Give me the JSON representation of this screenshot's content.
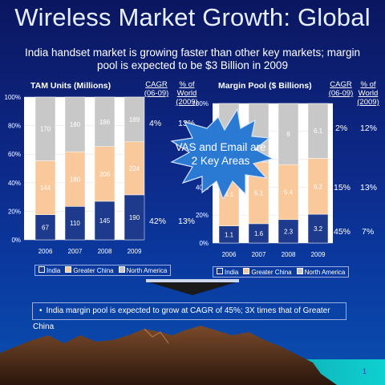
{
  "title": "Wireless Market Growth: Global",
  "subtitle": "India handset market is growing faster than other key markets; margin pool is expected to be $3 Billion in 2009",
  "starburst": {
    "text_line1": "VAS and Email are",
    "text_line2": "2 Key Areas"
  },
  "bullet": "India margin pool is expected to grow at CAGR of 45%; 3X times that of Greater China",
  "page_number": "1",
  "colors": {
    "india": "#1e3a8c",
    "greater_china": "#f9c89b",
    "north_america": "#c8c8c8",
    "starburst": "#2a7ad4"
  },
  "chart_data": [
    {
      "type": "bar",
      "stacked": "percent",
      "title": "TAM Units (Millions)",
      "categories": [
        "2006",
        "2007",
        "2008",
        "2009"
      ],
      "series": [
        {
          "name": "India",
          "values": [
            67,
            110,
            145,
            190
          ]
        },
        {
          "name": "Greater China",
          "values": [
            144,
            180,
            206,
            224
          ]
        },
        {
          "name": "North America",
          "values": [
            170,
            180,
            186,
            189
          ]
        }
      ],
      "yticks": [
        "0%",
        "20%",
        "40%",
        "60%",
        "80%",
        "100%"
      ],
      "ylim": [
        0,
        100
      ],
      "legend": [
        "India",
        "Greater China",
        "North America"
      ],
      "legend_position": "bottom",
      "table": {
        "col1_header_line1": "CAGR",
        "col1_header_line2": "(06-09)",
        "col2_header_line1": "% of World",
        "col2_header_line2": "(2009)",
        "rows": [
          {
            "cagr": "4%",
            "share": "13%"
          },
          {
            "cagr": "",
            "share": ""
          },
          {
            "cagr": "42%",
            "share": "13%"
          }
        ]
      }
    },
    {
      "type": "bar",
      "stacked": "percent",
      "title": "Margin Pool ($ Billions)",
      "categories": [
        "2006",
        "2007",
        "2008",
        "2009"
      ],
      "series": [
        {
          "name": "India",
          "values": [
            1.1,
            1.6,
            2.3,
            3.2
          ]
        },
        {
          "name": "Greater China",
          "values": [
            4.1,
            5.1,
            5.4,
            6.2
          ]
        },
        {
          "name": "North America",
          "values": [
            null,
            null,
            6.0,
            6.1
          ]
        }
      ],
      "yticks": [
        "0%",
        "20%",
        "40%",
        "60%",
        "80%",
        "100%"
      ],
      "ylim": [
        0,
        100
      ],
      "legend": [
        "India",
        "Greater China",
        "North America"
      ],
      "legend_position": "bottom",
      "table": {
        "col1_header_line1": "CAGR",
        "col1_header_line2": "(06-09)",
        "col2_header_line1": "% of World",
        "col2_header_line2": "(2009)",
        "rows": [
          {
            "cagr": "2%",
            "share": "12%"
          },
          {
            "cagr": "15%",
            "share": "13%"
          },
          {
            "cagr": "45%",
            "share": "7%"
          }
        ]
      }
    }
  ]
}
